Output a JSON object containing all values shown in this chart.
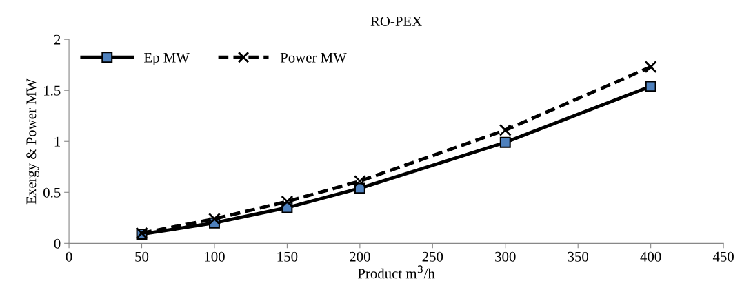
{
  "chart_data": {
    "type": "line",
    "title": "RO-PEX",
    "xlabel": "Product m$^{3}$/h",
    "ylabel": "Exergy & Power MW",
    "x": [
      50,
      100,
      150,
      200,
      300,
      400
    ],
    "series": [
      {
        "name": "Ep MW",
        "color": "#4f81bd",
        "values": [
          0.09,
          0.2,
          0.35,
          0.54,
          0.99,
          1.54
        ],
        "marker": "square",
        "line_style": "solid"
      },
      {
        "name": "Power MW",
        "color": "#000000",
        "values": [
          0.1,
          0.24,
          0.41,
          0.61,
          1.11,
          1.73
        ],
        "marker": "cross",
        "line_style": "dashed"
      }
    ],
    "xlim": [
      0,
      450
    ],
    "xticks": [
      0,
      50,
      100,
      150,
      200,
      250,
      300,
      350,
      400,
      450
    ],
    "ylim": [
      0,
      2
    ],
    "yticks": [
      0,
      0.5,
      1,
      1.5,
      2
    ],
    "grid": false,
    "legend": "top left"
  }
}
